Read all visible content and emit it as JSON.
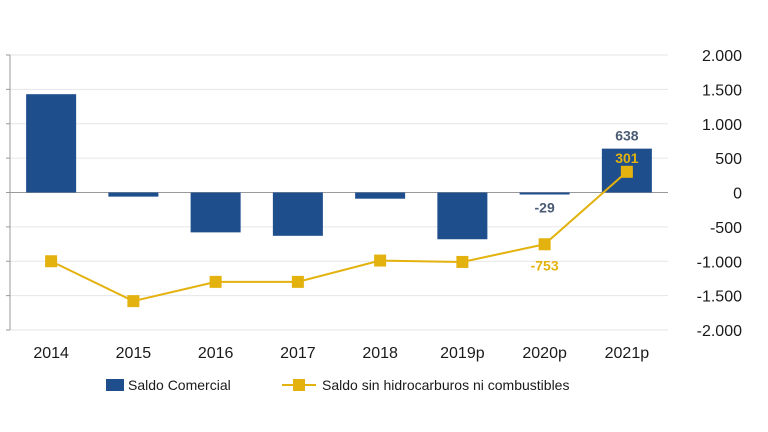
{
  "chart_data": {
    "type": "bar",
    "categories": [
      "2014",
      "2015",
      "2016",
      "2017",
      "2018",
      "2019p",
      "2020p",
      "2021p"
    ],
    "series": [
      {
        "name": "Saldo Comercial",
        "type": "bar",
        "color": "#1f4e8c",
        "values": [
          1430,
          -60,
          -580,
          -630,
          -90,
          -680,
          -29,
          638
        ],
        "data_labels": [
          {
            "index": 6,
            "text": "-29"
          },
          {
            "index": 7,
            "text": "638"
          }
        ]
      },
      {
        "name": "Saldo sin hidrocarburos ni combustibles",
        "type": "line",
        "color": "#e3b20e",
        "values": [
          -1000,
          -1580,
          -1300,
          -1300,
          -990,
          -1010,
          -753,
          301
        ],
        "data_labels": [
          {
            "index": 6,
            "text": "-753"
          },
          {
            "index": 7,
            "text": "301"
          }
        ]
      }
    ],
    "y_ticks": [
      "2.000",
      "1.500",
      "1.000",
      "500",
      "0",
      "-500",
      "-1.000",
      "-1.500",
      "-2.000"
    ],
    "y_tick_values": [
      2000,
      1500,
      1000,
      500,
      0,
      -500,
      -1000,
      -1500,
      -2000
    ],
    "ylim": [
      -2000,
      2000
    ],
    "y_axis_side": "right",
    "grid": true,
    "legend": "bottom",
    "title": "",
    "xlabel": "",
    "ylabel": ""
  }
}
